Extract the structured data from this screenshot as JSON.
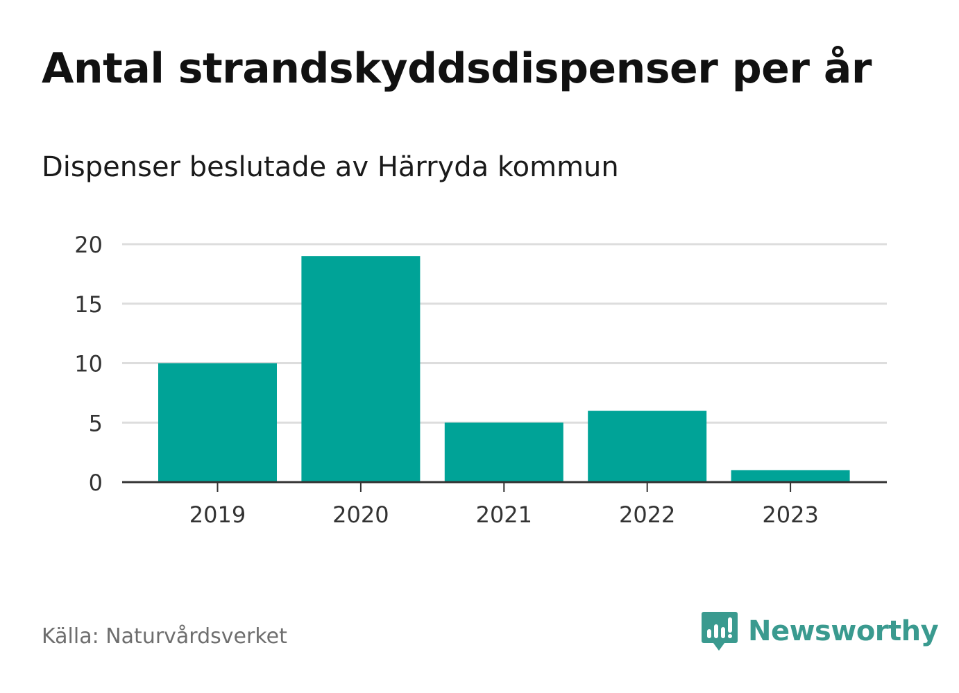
{
  "header": {
    "title": "Antal strandskyddsdispenser per år",
    "subtitle": "Dispenser beslutade av Härryda kommun"
  },
  "footer": {
    "source": "Källa: Naturvårdsverket",
    "brand": "Newsworthy",
    "brand_icon": "newsworthy-logo-icon"
  },
  "colors": {
    "bar": "#00a397",
    "grid": "#dddddd",
    "axis": "#333333",
    "brand": "#3a9a8f"
  },
  "chart_data": {
    "type": "bar",
    "title": "Antal strandskyddsdispenser per år",
    "subtitle": "Dispenser beslutade av Härryda kommun",
    "xlabel": "",
    "ylabel": "",
    "categories": [
      "2019",
      "2020",
      "2021",
      "2022",
      "2023"
    ],
    "values": [
      10,
      19,
      5,
      6,
      1
    ],
    "ylim": [
      0,
      20
    ],
    "yticks": [
      "0",
      "5",
      "10",
      "15",
      "20"
    ],
    "grid": true,
    "legend": "none"
  }
}
